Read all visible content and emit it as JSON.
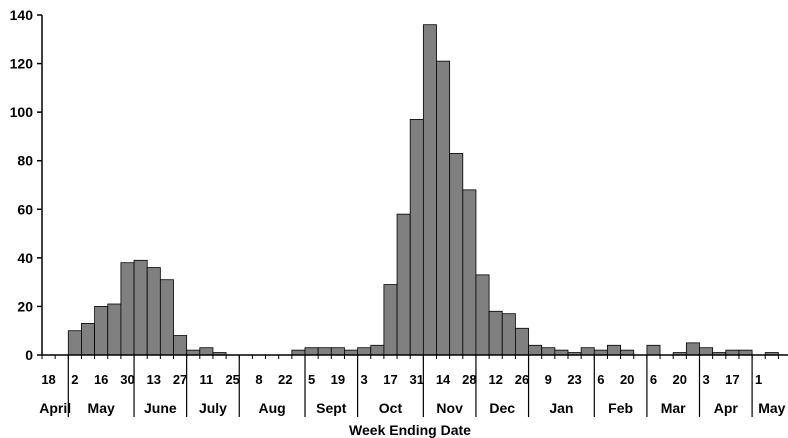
{
  "chart_data": {
    "type": "bar",
    "title": "",
    "xlabel": "Week Ending Date",
    "ylabel": "",
    "ylim": [
      0,
      140
    ],
    "yticks": [
      0,
      20,
      40,
      60,
      80,
      100,
      120,
      140
    ],
    "grid": false,
    "legend": "none",
    "bar_color": "#808080",
    "bar_edge_color": "#000000",
    "week_ending_dates": [
      "2009-04-18",
      "2009-04-25",
      "2009-05-02",
      "2009-05-09",
      "2009-05-16",
      "2009-05-23",
      "2009-05-30",
      "2009-06-06",
      "2009-06-13",
      "2009-06-20",
      "2009-06-27",
      "2009-07-04",
      "2009-07-11",
      "2009-07-18",
      "2009-07-25",
      "2009-08-01",
      "2009-08-08",
      "2009-08-15",
      "2009-08-22",
      "2009-08-29",
      "2009-09-05",
      "2009-09-12",
      "2009-09-19",
      "2009-09-26",
      "2009-10-03",
      "2009-10-10",
      "2009-10-17",
      "2009-10-24",
      "2009-10-31",
      "2009-11-07",
      "2009-11-14",
      "2009-11-21",
      "2009-11-28",
      "2009-12-05",
      "2009-12-12",
      "2009-12-19",
      "2009-12-26",
      "2010-01-02",
      "2010-01-09",
      "2010-01-16",
      "2010-01-23",
      "2010-01-30",
      "2010-02-06",
      "2010-02-13",
      "2010-02-20",
      "2010-02-27",
      "2010-03-06",
      "2010-03-13",
      "2010-03-20",
      "2010-03-27",
      "2010-04-03",
      "2010-04-10",
      "2010-04-17",
      "2010-04-24",
      "2010-05-01",
      "2010-05-08",
      "2010-05-15"
    ],
    "values": [
      0,
      0,
      10,
      13,
      20,
      21,
      38,
      39,
      36,
      31,
      8,
      2,
      3,
      1,
      0,
      0,
      0,
      0,
      0,
      2,
      3,
      3,
      3,
      2,
      3,
      4,
      29,
      58,
      97,
      136,
      121,
      83,
      68,
      33,
      18,
      17,
      11,
      4,
      3,
      2,
      1,
      3,
      2,
      4,
      2,
      0,
      4,
      0,
      1,
      5,
      3,
      1,
      2,
      2,
      0,
      1,
      0
    ],
    "tick_labels": [
      {
        "week": 0,
        "label": "18"
      },
      {
        "week": 2,
        "label": "2"
      },
      {
        "week": 4,
        "label": "16"
      },
      {
        "week": 6,
        "label": "30"
      },
      {
        "week": 8,
        "label": "13"
      },
      {
        "week": 10,
        "label": "27"
      },
      {
        "week": 12,
        "label": "11"
      },
      {
        "week": 14,
        "label": "25"
      },
      {
        "week": 16,
        "label": "8"
      },
      {
        "week": 18,
        "label": "22"
      },
      {
        "week": 20,
        "label": "5"
      },
      {
        "week": 22,
        "label": "19"
      },
      {
        "week": 24,
        "label": "3"
      },
      {
        "week": 26,
        "label": "17"
      },
      {
        "week": 28,
        "label": "31"
      },
      {
        "week": 30,
        "label": "14"
      },
      {
        "week": 32,
        "label": "28"
      },
      {
        "week": 34,
        "label": "12"
      },
      {
        "week": 36,
        "label": "26"
      },
      {
        "week": 38,
        "label": "9"
      },
      {
        "week": 40,
        "label": "23"
      },
      {
        "week": 42,
        "label": "6"
      },
      {
        "week": 44,
        "label": "20"
      },
      {
        "week": 46,
        "label": "6"
      },
      {
        "week": 48,
        "label": "20"
      },
      {
        "week": 50,
        "label": "3"
      },
      {
        "week": 52,
        "label": "17"
      },
      {
        "week": 54,
        "label": "1"
      }
    ],
    "months": [
      "April",
      "May",
      "June",
      "July",
      "Aug",
      "Sept",
      "Oct",
      "Nov",
      "Dec",
      "Jan",
      "Feb",
      "Mar",
      "Apr",
      "May"
    ]
  }
}
